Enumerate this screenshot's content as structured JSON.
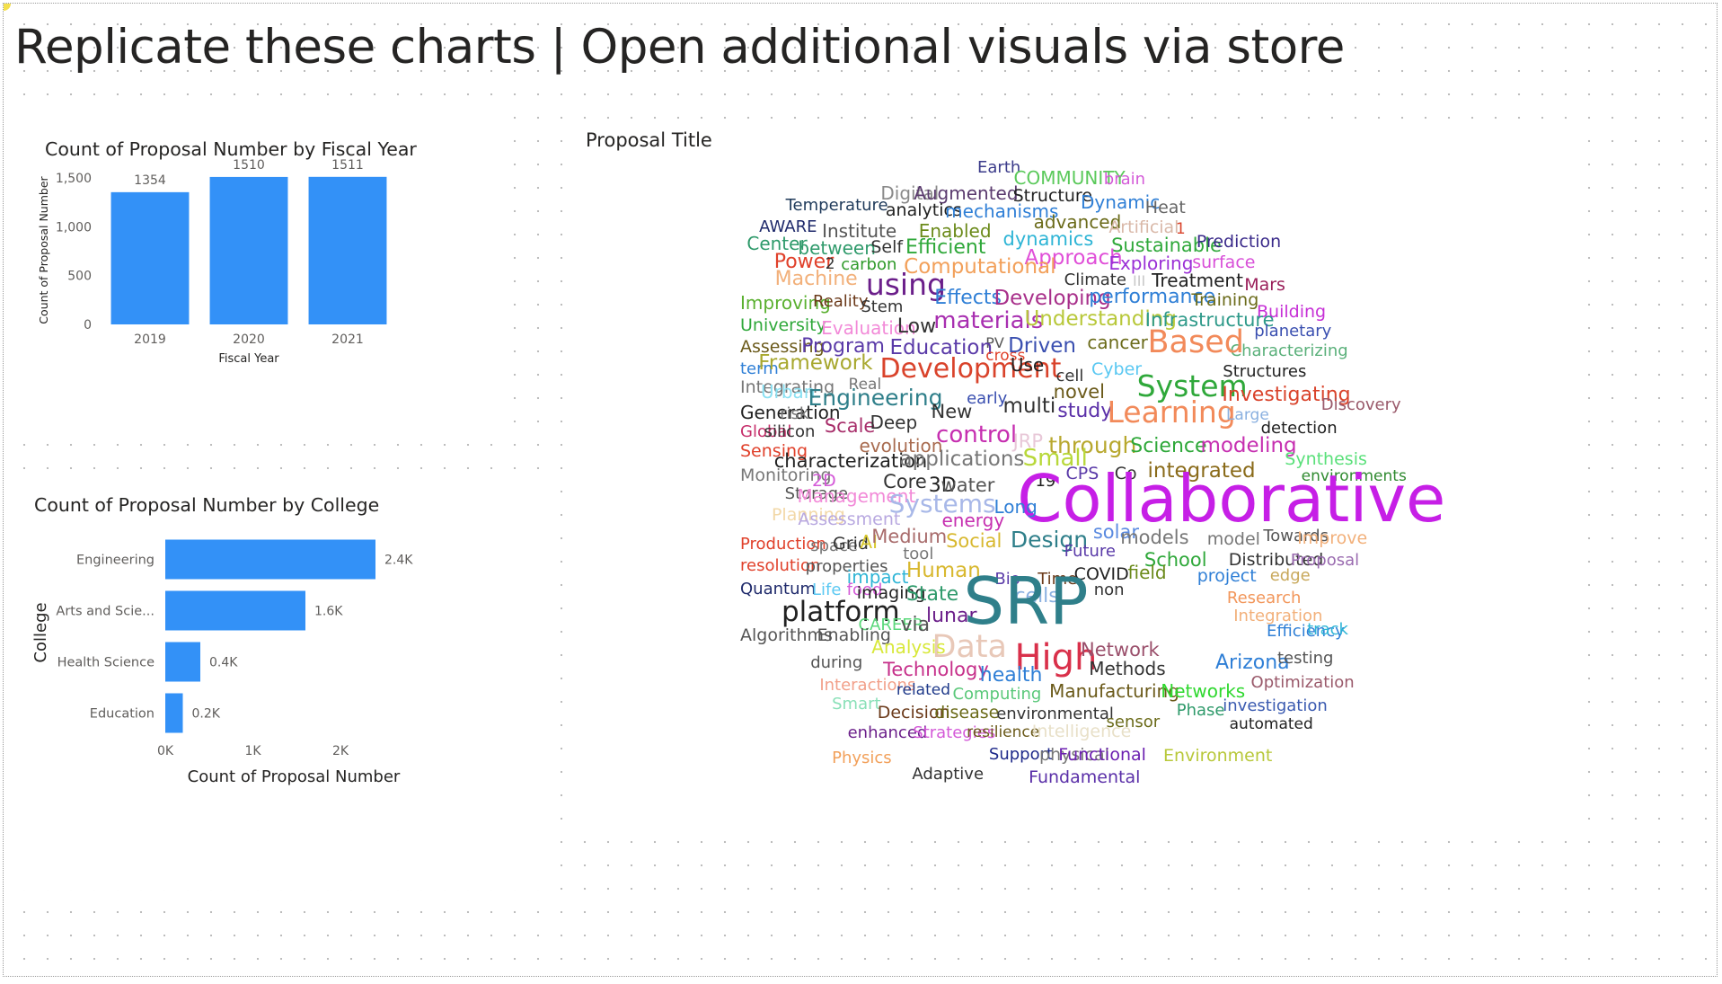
{
  "page": {
    "title": "Replicate these charts | Open additional visuals via store"
  },
  "visual1": {
    "chart_data": {
      "type": "bar",
      "title": "Count of Proposal Number by Fiscal Year",
      "xlabel": "Fiscal Year",
      "ylabel": "Count of Proposal Number",
      "categories": [
        "2019",
        "2020",
        "2021"
      ],
      "values": [
        1354,
        1510,
        1511
      ],
      "data_labels": [
        "1354",
        "1510",
        "1511"
      ],
      "ylim": [
        0,
        1500
      ],
      "yticks": [
        0,
        500,
        1000,
        1500
      ],
      "ytick_labels": [
        "0",
        "500",
        "1,000",
        "1,500"
      ],
      "bar_color": "#3391f7",
      "grid": false
    }
  },
  "visual2": {
    "chart_data": {
      "type": "bar",
      "orientation": "horizontal",
      "title": "Count of Proposal Number by College",
      "xlabel": "Count of Proposal Number",
      "ylabel": "College",
      "categories": [
        "Engineering",
        "Arts and Scie...",
        "Health Science",
        "Education"
      ],
      "values": [
        2400,
        1600,
        400,
        200
      ],
      "data_labels": [
        "2.4K",
        "1.6K",
        "0.4K",
        "0.2K"
      ],
      "xlim": [
        0,
        2500
      ],
      "xticks": [
        0,
        1000,
        2000
      ],
      "xtick_labels": [
        "0K",
        "1K",
        "2K"
      ],
      "bar_color": "#3391f7",
      "grid": false
    }
  },
  "wordcloud": {
    "title": "Proposal Title",
    "words": [
      {
        "t": "Earth",
        "c": "#3b3b8a"
      },
      {
        "t": "COMMUNITY",
        "c": "#5ac95a"
      },
      {
        "t": "brain",
        "c": "#d45ad8"
      },
      {
        "t": "Digital",
        "c": "#8a8a8a"
      },
      {
        "t": "Augmented",
        "c": "#5a3a6e"
      },
      {
        "t": "Structure",
        "c": "#222222"
      },
      {
        "t": "Dynamic",
        "c": "#2f7fd6"
      },
      {
        "t": "Heat",
        "c": "#666666"
      },
      {
        "t": "Temperature",
        "c": "#1f3a5a"
      },
      {
        "t": "analytics",
        "c": "#222222"
      },
      {
        "t": "mechanisms",
        "c": "#2f7fd6"
      },
      {
        "t": "advanced",
        "c": "#6b6b1a"
      },
      {
        "t": "Artificial",
        "c": "#d9b8a8"
      },
      {
        "t": "1",
        "c": "#d9432b"
      },
      {
        "t": "AWARE",
        "c": "#1f2a6b"
      },
      {
        "t": "Institute",
        "c": "#555555"
      },
      {
        "t": "Enabled",
        "c": "#6b8a1a"
      },
      {
        "t": "dynamics",
        "c": "#2fb5d6"
      },
      {
        "t": "Sustainable",
        "c": "#2fa83a"
      },
      {
        "t": "Prediction",
        "c": "#3a2a8a"
      },
      {
        "t": "Center",
        "c": "#2f9a6b"
      },
      {
        "t": "between",
        "c": "#2f9a6b"
      },
      {
        "t": "Self",
        "c": "#333333"
      },
      {
        "t": "Efficient",
        "c": "#2fa83a"
      },
      {
        "t": "Approach",
        "c": "#e04fd8"
      },
      {
        "t": "Exploring",
        "c": "#9a2fd6"
      },
      {
        "t": "surface",
        "c": "#d84fd8"
      },
      {
        "t": "Power",
        "c": "#e0402a"
      },
      {
        "t": "2",
        "c": "#333333"
      },
      {
        "t": "carbon",
        "c": "#2f9a2a"
      },
      {
        "t": "Computational",
        "c": "#f2a05a"
      },
      {
        "t": "Climate",
        "c": "#333333"
      },
      {
        "t": "III",
        "c": "#c8c8c8"
      },
      {
        "t": "Treatment",
        "c": "#222222"
      },
      {
        "t": "Mars",
        "c": "#9a1f5a"
      },
      {
        "t": "Machine",
        "c": "#f2b07a"
      },
      {
        "t": "using",
        "c": "#6b1f8a"
      },
      {
        "t": "Effects",
        "c": "#2f7fd6"
      },
      {
        "t": "Developing",
        "c": "#a82f8a"
      },
      {
        "t": "performance",
        "c": "#2f7fd6"
      },
      {
        "t": "Training",
        "c": "#6b6b1a"
      },
      {
        "t": "Building",
        "c": "#c62fd6"
      },
      {
        "t": "Improving",
        "c": "#5ab02f"
      },
      {
        "t": "Reality",
        "c": "#6b3a1a"
      },
      {
        "t": "Stem",
        "c": "#333333"
      },
      {
        "t": "materials",
        "c": "#a82fb0"
      },
      {
        "t": "Understanding",
        "c": "#b8c83a"
      },
      {
        "t": "Infrastructure",
        "c": "#2f9a8a"
      },
      {
        "t": "planetary",
        "c": "#3a4fb0"
      },
      {
        "t": "University",
        "c": "#2fa83a"
      },
      {
        "t": "Evaluation",
        "c": "#f28ad8"
      },
      {
        "t": "Low",
        "c": "#333333"
      },
      {
        "t": "PV",
        "c": "#555555"
      },
      {
        "t": "cancer",
        "c": "#6b6b1a"
      },
      {
        "t": "Characterizing",
        "c": "#5ab07a"
      },
      {
        "t": "Assessing",
        "c": "#6b5a1a"
      },
      {
        "t": "Program",
        "c": "#5a3aa8"
      },
      {
        "t": "Education",
        "c": "#5a3aa8"
      },
      {
        "t": "cross",
        "c": "#e0402a"
      },
      {
        "t": "Driven",
        "c": "#3a4fb0"
      },
      {
        "t": "Based",
        "c": "#f28a5a"
      },
      {
        "t": "term",
        "c": "#2f7fd6"
      },
      {
        "t": "Framework",
        "c": "#a8a82f"
      },
      {
        "t": "Development",
        "c": "#d9432b"
      },
      {
        "t": "Use",
        "c": "#222222"
      },
      {
        "t": "cell",
        "c": "#333333"
      },
      {
        "t": "Cyber",
        "c": "#5ac8f2"
      },
      {
        "t": "System",
        "c": "#2fa83a"
      },
      {
        "t": "Structures",
        "c": "#222222"
      },
      {
        "t": "Integrating",
        "c": "#777777"
      },
      {
        "t": "Urban",
        "c": "#8ae0f2"
      },
      {
        "t": "Real",
        "c": "#777777"
      },
      {
        "t": "novel",
        "c": "#6b5a1a"
      },
      {
        "t": "Investigating",
        "c": "#d9432b"
      },
      {
        "t": "Discovery",
        "c": "#9a5a6b"
      },
      {
        "t": "Generation",
        "c": "#222222"
      },
      {
        "t": "risk",
        "c": "#777777"
      },
      {
        "t": "Engineering",
        "c": "#2f7f8a"
      },
      {
        "t": "early",
        "c": "#3a4fb0"
      },
      {
        "t": "multi",
        "c": "#333333"
      },
      {
        "t": "study",
        "c": "#5a2fa8"
      },
      {
        "t": "Learning",
        "c": "#f28a5a"
      },
      {
        "t": "Large",
        "c": "#8ab0e0"
      },
      {
        "t": "Global",
        "c": "#c62f6b"
      },
      {
        "t": "silicon",
        "c": "#333333"
      },
      {
        "t": "Scale",
        "c": "#a82f6b"
      },
      {
        "t": "Deep",
        "c": "#333333"
      },
      {
        "t": "New",
        "c": "#333333"
      },
      {
        "t": "detection",
        "c": "#222222"
      },
      {
        "t": "Sensing",
        "c": "#e0402a"
      },
      {
        "t": "evolution",
        "c": "#a86b4f"
      },
      {
        "t": "control",
        "c": "#c62fb0"
      },
      {
        "t": "JRP",
        "c": "#e8c8d8"
      },
      {
        "t": "through",
        "c": "#b8a82f"
      },
      {
        "t": "Science",
        "c": "#2fa83a"
      },
      {
        "t": "modeling",
        "c": "#c62fb0"
      },
      {
        "t": "Synthesis",
        "c": "#5ae07a"
      },
      {
        "t": "characterization",
        "c": "#222222"
      },
      {
        "t": "applications",
        "c": "#777777"
      },
      {
        "t": "Small",
        "c": "#b8d83a"
      },
      {
        "t": "integrated",
        "c": "#8a6b1a"
      },
      {
        "t": "environments",
        "c": "#2f8a2f"
      },
      {
        "t": "Monitoring",
        "c": "#777777"
      },
      {
        "t": "2D",
        "c": "#d45ad8"
      },
      {
        "t": "Core",
        "c": "#333333"
      },
      {
        "t": "3D",
        "c": "#222222"
      },
      {
        "t": "water",
        "c": "#555555"
      },
      {
        "t": "19",
        "c": "#222222"
      },
      {
        "t": "CPS",
        "c": "#5a3aa8"
      },
      {
        "t": "Co",
        "c": "#333333"
      },
      {
        "t": "Storage",
        "c": "#555555"
      },
      {
        "t": "Management",
        "c": "#f28ad8"
      },
      {
        "t": "Systems",
        "c": "#a8b8e8"
      },
      {
        "t": "Collaborative",
        "c": "#c61fe6"
      },
      {
        "t": "Planning",
        "c": "#f2d8a8"
      },
      {
        "t": "Assessment",
        "c": "#b8a8e0"
      },
      {
        "t": "energy",
        "c": "#c62fb0"
      },
      {
        "t": "Long",
        "c": "#2f7fd6"
      },
      {
        "t": "Production",
        "c": "#e0402a"
      },
      {
        "t": "space",
        "c": "#777777"
      },
      {
        "t": "Grid",
        "c": "#333333"
      },
      {
        "t": "AI",
        "c": "#d8c82f"
      },
      {
        "t": "Medium",
        "c": "#a86b6b"
      },
      {
        "t": "Social",
        "c": "#d8b82f"
      },
      {
        "t": "Design",
        "c": "#2f7f8a"
      },
      {
        "t": "solar",
        "c": "#5a8ae0"
      },
      {
        "t": "models",
        "c": "#777777"
      },
      {
        "t": "model",
        "c": "#777777"
      },
      {
        "t": "Towards",
        "c": "#555555"
      },
      {
        "t": "Improve",
        "c": "#f2b07a"
      },
      {
        "t": "resolution",
        "c": "#e0402a"
      },
      {
        "t": "properties",
        "c": "#555555"
      },
      {
        "t": "tool",
        "c": "#777777"
      },
      {
        "t": "Future",
        "c": "#5a3aa8"
      },
      {
        "t": "School",
        "c": "#2fa83a"
      },
      {
        "t": "Distributed",
        "c": "#333333"
      },
      {
        "t": "Proposal",
        "c": "#9a6bb0"
      },
      {
        "t": "impact",
        "c": "#2fb5d6"
      },
      {
        "t": "Human",
        "c": "#d8b82f"
      },
      {
        "t": "Bio",
        "c": "#5a3aa8"
      },
      {
        "t": "Time",
        "c": "#6b3a1a"
      },
      {
        "t": "COVID",
        "c": "#222222"
      },
      {
        "t": "field",
        "c": "#6b8a1a"
      },
      {
        "t": "project",
        "c": "#2f7fd6"
      },
      {
        "t": "edge",
        "c": "#c8a85a"
      },
      {
        "t": "Quantum",
        "c": "#1f2a6b"
      },
      {
        "t": "Life",
        "c": "#5ac8f2"
      },
      {
        "t": "food",
        "c": "#d45ad8"
      },
      {
        "t": "imaging",
        "c": "#222222"
      },
      {
        "t": "State",
        "c": "#2f9a6b"
      },
      {
        "t": "cells",
        "c": "#8ab0e0"
      },
      {
        "t": "non",
        "c": "#333333"
      },
      {
        "t": "Research",
        "c": "#f2965a"
      },
      {
        "t": "platform",
        "c": "#222222"
      },
      {
        "t": "CAREER",
        "c": "#5ad87a"
      },
      {
        "t": "lunar",
        "c": "#6b1f8a"
      },
      {
        "t": "SRP",
        "c": "#2f7f8a"
      },
      {
        "t": "Integration",
        "c": "#f2b07a"
      },
      {
        "t": "Algorithms",
        "c": "#555555"
      },
      {
        "t": "Enabling",
        "c": "#555555"
      },
      {
        "t": "via",
        "c": "#555555"
      },
      {
        "t": "Data",
        "c": "#e8c8b8"
      },
      {
        "t": "High",
        "c": "#d9304a"
      },
      {
        "t": "Network",
        "c": "#9a4f6b"
      },
      {
        "t": "Arizona",
        "c": "#2f7fd6"
      },
      {
        "t": "Efficiency",
        "c": "#2f7fd6"
      },
      {
        "t": "track",
        "c": "#2fb5d6"
      },
      {
        "t": "during",
        "c": "#555555"
      },
      {
        "t": "Analysis",
        "c": "#d8e83a"
      },
      {
        "t": "Methods",
        "c": "#333333"
      },
      {
        "t": "testing",
        "c": "#555555"
      },
      {
        "t": "Technology",
        "c": "#c62f8a"
      },
      {
        "t": "health",
        "c": "#2f7fd6"
      },
      {
        "t": "Interactions",
        "c": "#f2a08a"
      },
      {
        "t": "related",
        "c": "#1f3a8a"
      },
      {
        "t": "Computing",
        "c": "#5ac87a"
      },
      {
        "t": "Manufacturing",
        "c": "#6b5a1a"
      },
      {
        "t": "Networks",
        "c": "#2fd82f"
      },
      {
        "t": "Optimization",
        "c": "#9a5a6b"
      },
      {
        "t": "Smart",
        "c": "#8ae0b8"
      },
      {
        "t": "Decision",
        "c": "#6b3a1a"
      },
      {
        "t": "disease",
        "c": "#6b6b1a"
      },
      {
        "t": "environmental",
        "c": "#333333"
      },
      {
        "t": "Phase",
        "c": "#2f9a6b"
      },
      {
        "t": "investigation",
        "c": "#3a5ab0"
      },
      {
        "t": "enhanced",
        "c": "#6b1f8a"
      },
      {
        "t": "Strategies",
        "c": "#d45ad8"
      },
      {
        "t": "resilience",
        "c": "#6b5a1a"
      },
      {
        "t": "Intelligence",
        "c": "#e8e0c8"
      },
      {
        "t": "sensor",
        "c": "#6b6b1a"
      },
      {
        "t": "automated",
        "c": "#222222"
      },
      {
        "t": "Physics",
        "c": "#f2a05a"
      },
      {
        "t": "Support",
        "c": "#1f2a8a"
      },
      {
        "t": "physical",
        "c": "#777777"
      },
      {
        "t": "Functional",
        "c": "#6b1fb0"
      },
      {
        "t": "Environment",
        "c": "#b8c83a"
      },
      {
        "t": "Adaptive",
        "c": "#333333"
      },
      {
        "t": "Fundamental",
        "c": "#5a2fa8"
      }
    ]
  }
}
